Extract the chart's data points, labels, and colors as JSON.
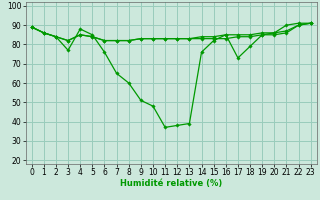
{
  "title": "",
  "xlabel": "Humidité relative (%)",
  "ylabel": "",
  "background_color": "#cce8dc",
  "grid_color": "#99ccbb",
  "line_color": "#009900",
  "marker_color": "#009900",
  "xlim": [
    -0.5,
    23.5
  ],
  "ylim": [
    18,
    102
  ],
  "yticks": [
    20,
    30,
    40,
    50,
    60,
    70,
    80,
    90,
    100
  ],
  "xticks": [
    0,
    1,
    2,
    3,
    4,
    5,
    6,
    7,
    8,
    9,
    10,
    11,
    12,
    13,
    14,
    15,
    16,
    17,
    18,
    19,
    20,
    21,
    22,
    23
  ],
  "series": [
    [
      89,
      86,
      84,
      77,
      88,
      85,
      76,
      65,
      60,
      51,
      48,
      37,
      38,
      39,
      76,
      82,
      85,
      73,
      79,
      85,
      86,
      90,
      91,
      91
    ],
    [
      89,
      86,
      84,
      82,
      85,
      84,
      82,
      82,
      82,
      83,
      83,
      83,
      83,
      83,
      84,
      84,
      85,
      85,
      85,
      86,
      86,
      87,
      90,
      91
    ],
    [
      89,
      86,
      84,
      82,
      85,
      84,
      82,
      82,
      82,
      83,
      83,
      83,
      83,
      83,
      83,
      83,
      83,
      84,
      84,
      85,
      85,
      86,
      90,
      91
    ]
  ],
  "xlabel_fontsize": 6,
  "tick_fontsize": 5.5
}
